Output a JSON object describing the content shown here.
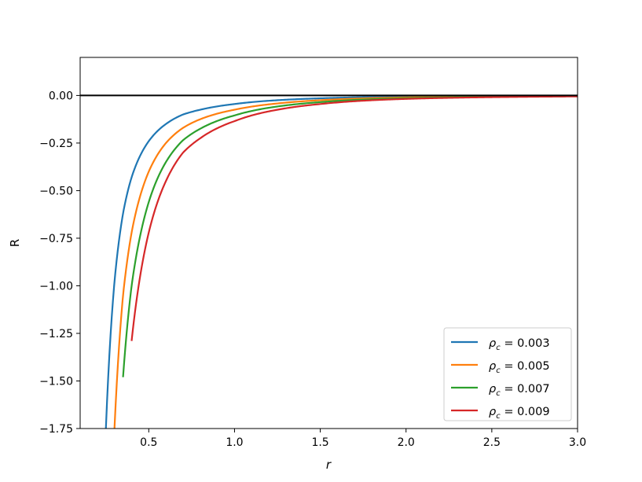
{
  "chart_data": {
    "type": "line",
    "title": "",
    "xlabel": "r",
    "ylabel": "R",
    "xlim": [
      0.1,
      3.0
    ],
    "ylim": [
      -1.75,
      0.2
    ],
    "xticks": [
      0.5,
      1.0,
      1.5,
      2.0,
      2.5,
      3.0
    ],
    "xtick_labels": [
      "0.5",
      "1.0",
      "1.5",
      "2.0",
      "2.5",
      "3.0"
    ],
    "yticks": [
      0.0,
      -0.25,
      -0.5,
      -0.75,
      -1.0,
      -1.25,
      -1.5,
      -1.75
    ],
    "ytick_labels": [
      "0.00",
      "−0.25",
      "−0.50",
      "−0.75",
      "−1.00",
      "−1.25",
      "−1.50",
      "−1.75"
    ],
    "grid": false,
    "legend_location": "lower-right",
    "reference_line": {
      "y": 0.0,
      "color": "#000000"
    },
    "x": [
      0.25,
      0.3,
      0.35,
      0.4,
      0.5,
      0.6,
      0.7,
      0.8,
      1.0,
      1.25,
      1.5,
      2.0,
      2.5,
      3.0
    ],
    "series": [
      {
        "name": "ρc = 0.003",
        "legend_symbol": "ρ",
        "legend_subscript": "c",
        "legend_value": " = 0.003",
        "color": "#1f77b4",
        "values": [
          -1.75,
          -0.98,
          -0.62,
          -0.43,
          -0.24,
          -0.15,
          -0.1,
          -0.075,
          -0.045,
          -0.025,
          -0.015,
          -0.006,
          -0.003,
          -0.002
        ]
      },
      {
        "name": "ρc = 0.005",
        "legend_symbol": "ρ",
        "legend_subscript": "c",
        "legend_value": " = 0.005",
        "color": "#ff7f0e",
        "values": [
          null,
          -1.75,
          -1.05,
          -0.72,
          -0.4,
          -0.25,
          -0.17,
          -0.125,
          -0.075,
          -0.042,
          -0.025,
          -0.01,
          -0.005,
          -0.003
        ]
      },
      {
        "name": "ρc = 0.007",
        "legend_symbol": "ρ",
        "legend_subscript": "c",
        "legend_value": " = 0.007",
        "color": "#2ca02c",
        "values": [
          null,
          null,
          -1.48,
          -1.0,
          -0.56,
          -0.35,
          -0.235,
          -0.175,
          -0.105,
          -0.058,
          -0.035,
          -0.014,
          -0.007,
          -0.004
        ]
      },
      {
        "name": "ρc = 0.009",
        "legend_symbol": "ρ",
        "legend_subscript": "c",
        "legend_value": " = 0.009",
        "color": "#d62728",
        "values": [
          null,
          null,
          null,
          -1.29,
          -0.72,
          -0.45,
          -0.3,
          -0.225,
          -0.135,
          -0.075,
          -0.045,
          -0.018,
          -0.009,
          -0.005
        ]
      }
    ]
  }
}
